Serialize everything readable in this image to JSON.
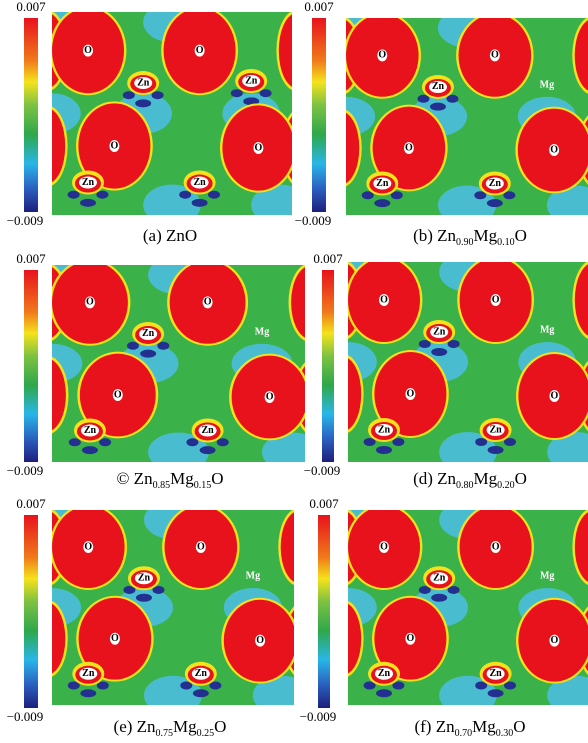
{
  "panels": [
    {
      "colorbar": {
        "max": "0.007",
        "min": "−0.009"
      },
      "atoms": [
        "O",
        "O",
        "Zn",
        "Zn",
        "O",
        "O",
        "Zn",
        "Zn"
      ],
      "caption": [
        "(a) ZnO"
      ]
    },
    {
      "colorbar": {
        "max": "0.007",
        "min": "−0.009"
      },
      "atoms": [
        "O",
        "O",
        "Zn",
        "Mg",
        "O",
        "O",
        "Zn",
        "Zn"
      ],
      "caption": [
        "(b) Zn",
        "0.90",
        "Mg",
        "0.10",
        "O"
      ]
    },
    {
      "colorbar": {
        "max": "0.007",
        "min": "−0.009"
      },
      "atoms": [
        "O",
        "O",
        "Zn",
        "Mg",
        "O",
        "O",
        "Zn",
        "Zn"
      ],
      "caption": [
        "© Zn",
        "0.85",
        "Mg",
        "0.15",
        "O"
      ]
    },
    {
      "colorbar": {
        "max": "0.007",
        "min": "−0.009"
      },
      "atoms": [
        "O",
        "O",
        "Zn",
        "Mg",
        "O",
        "O",
        "Zn",
        "Zn"
      ],
      "caption": [
        "(d) Zn",
        "0.80",
        "Mg",
        "0.20",
        "O"
      ]
    },
    {
      "colorbar": {
        "max": "0.007",
        "min": "−0.009"
      },
      "atoms": [
        "O",
        "O",
        "Zn",
        "Mg",
        "O",
        "O",
        "Zn",
        "Zn"
      ],
      "caption": [
        "(e) Zn",
        "0.75",
        "Mg",
        "0.25",
        "O"
      ]
    },
    {
      "colorbar": {
        "max": "0.007",
        "min": "−0.009"
      },
      "atoms": [
        "O",
        "O",
        "Zn",
        "Mg",
        "O",
        "O",
        "Zn",
        "Zn"
      ],
      "caption": [
        "(f) Zn",
        "0.70",
        "Mg",
        "0.30",
        "O"
      ]
    }
  ]
}
